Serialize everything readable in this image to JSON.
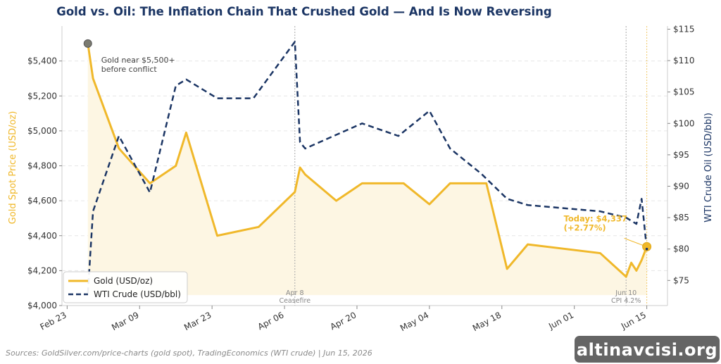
{
  "chart_data": {
    "type": "line",
    "title": "Gold vs. Oil: The Inflation Chain That Crushed Gold — And Is Now Reversing",
    "ylabel_left": "Gold Spot Price (USD/oz)",
    "ylabel_right": "WTI Crude Oil (USD/bbl)",
    "x_ticks": [
      "Feb 23",
      "Mar 09",
      "Mar 23",
      "Apr 06",
      "Apr 20",
      "May 04",
      "May 18",
      "Jun 01",
      "Jun 15"
    ],
    "x_tick_dates": [
      "2026-02-23",
      "2026-03-09",
      "2026-03-23",
      "2026-04-06",
      "2026-04-20",
      "2026-05-04",
      "2026-05-18",
      "2026-06-01",
      "2026-06-15"
    ],
    "x_range": [
      "2026-02-22",
      "2026-06-19"
    ],
    "y_left_ticks": [
      4000,
      4200,
      4400,
      4600,
      4800,
      5000,
      5200,
      5400
    ],
    "y_left_tick_labels": [
      "$4,000",
      "$4,200",
      "$4,400",
      "$4,600",
      "$4,800",
      "$5,000",
      "$5,200",
      "$5,400"
    ],
    "y_left_range": [
      4000,
      5600
    ],
    "y_right_ticks": [
      75,
      80,
      85,
      90,
      95,
      100,
      105,
      110,
      115
    ],
    "y_right_tick_labels": [
      "$75",
      "$80",
      "$85",
      "$90",
      "$95",
      "$100",
      "$105",
      "$110",
      "$115"
    ],
    "y_right_range": [
      71,
      115.5
    ],
    "grid": "horizontal dashed",
    "legend_position": "bottom-left",
    "series": [
      {
        "name": "Gold (USD/oz)",
        "axis": "left",
        "color": "#f0b82a",
        "style": "solid",
        "x": [
          "2026-02-27",
          "2026-02-28",
          "2026-03-05",
          "2026-03-11",
          "2026-03-16",
          "2026-03-18",
          "2026-03-24",
          "2026-04-01",
          "2026-04-08",
          "2026-04-09",
          "2026-04-10",
          "2026-04-16",
          "2026-04-21",
          "2026-04-29",
          "2026-05-04",
          "2026-05-08",
          "2026-05-15",
          "2026-05-19",
          "2026-05-23",
          "2026-06-06",
          "2026-06-11",
          "2026-06-12",
          "2026-06-13",
          "2026-06-14",
          "2026-06-15"
        ],
        "values": [
          5500,
          5300,
          4900,
          4700,
          4800,
          4990,
          4400,
          4450,
          4650,
          4790,
          4750,
          4600,
          4700,
          4700,
          4580,
          4700,
          4700,
          4210,
          4350,
          4300,
          4165,
          4245,
          4200,
          4260,
          4337
        ]
      },
      {
        "name": "WTI Crude (USD/bbl)",
        "axis": "right",
        "color": "#1b3564",
        "style": "dashed",
        "x": [
          "2026-02-27",
          "2026-02-28",
          "2026-03-05",
          "2026-03-11",
          "2026-03-16",
          "2026-03-18",
          "2026-03-24",
          "2026-03-31",
          "2026-04-08",
          "2026-04-09",
          "2026-04-10",
          "2026-04-21",
          "2026-04-28",
          "2026-05-04",
          "2026-05-08",
          "2026-05-14",
          "2026-05-19",
          "2026-05-23",
          "2026-06-06",
          "2026-06-11",
          "2026-06-13",
          "2026-06-14",
          "2026-06-15"
        ],
        "values": [
          73,
          86,
          98,
          89,
          106,
          107,
          104,
          104,
          113,
          97,
          96,
          100,
          98,
          102,
          96,
          92,
          88,
          87,
          86,
          85,
          84,
          88,
          80
        ]
      }
    ],
    "annotations": {
      "gold_peak_note": "Gold near $5,500+\nbefore conflict",
      "today_note": "Today: $4,337\n(+2.77%)",
      "vlines": [
        {
          "date": "2026-04-08",
          "label": "Apr 8\nCeasefire",
          "color": "#aaaaaa"
        },
        {
          "date": "2026-06-11",
          "label": "Jun 10\nCPI 4.2%",
          "color": "#aaaaaa"
        },
        {
          "date": "2026-06-15",
          "label": "",
          "color": "#f0c96a"
        }
      ]
    },
    "source": "Sources: GoldSilver.com/price-charts (gold spot), TradingEconomics (WTI crude) | Jun 15, 2026"
  },
  "watermark": "altinavcisi.org",
  "colors": {
    "gold": "#f0b82a",
    "oil": "#1b3564",
    "gold_fill": "#fdf6e3",
    "grid": "#e6e6e6"
  }
}
